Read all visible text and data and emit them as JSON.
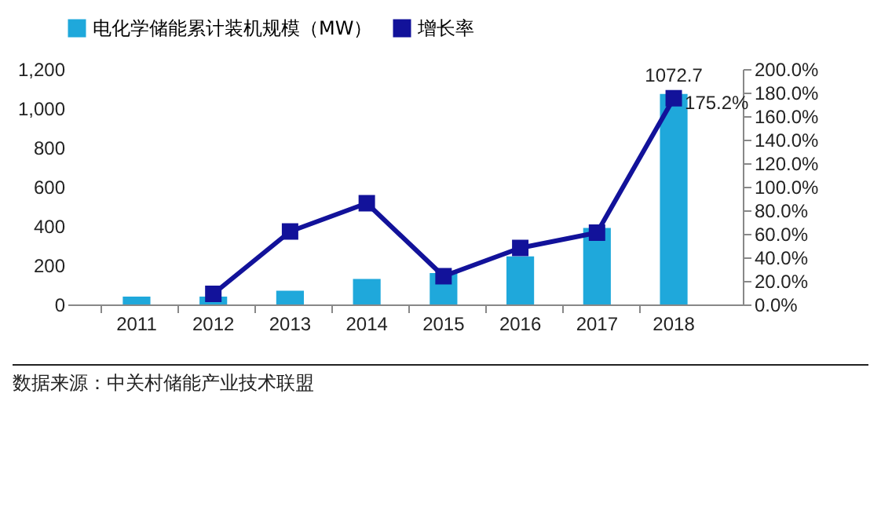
{
  "chart_data": {
    "type": "bar",
    "categories": [
      "2011",
      "2012",
      "2013",
      "2014",
      "2015",
      "2016",
      "2017",
      "2018"
    ],
    "series": [
      {
        "name": "电化学储能累计装机规模（MW）",
        "color": "#1fa8db",
        "values": [
          40,
          40,
          70,
          130,
          160,
          245,
          390,
          1072.7
        ],
        "value_labels": [
          null,
          null,
          null,
          null,
          null,
          null,
          null,
          "1072.7"
        ]
      },
      {
        "name": "增长率",
        "type": "line",
        "axis": "y2",
        "color": "#12129a",
        "marker": "square",
        "values": [
          null,
          9,
          62,
          86,
          24,
          48,
          61,
          175.2
        ],
        "value_labels": [
          null,
          null,
          null,
          null,
          null,
          null,
          null,
          "175.2%"
        ]
      }
    ],
    "ylim": [
      0,
      1200
    ],
    "yticks": [
      {
        "value": 0,
        "label": "0"
      },
      {
        "value": 200,
        "label": "200"
      },
      {
        "value": 400,
        "label": "400"
      },
      {
        "value": 600,
        "label": "600"
      },
      {
        "value": 800,
        "label": "800"
      },
      {
        "value": 1000,
        "label": "1,000"
      },
      {
        "value": 1200,
        "label": "1,200"
      }
    ],
    "y2lim": [
      0,
      200
    ],
    "y2ticks": [
      {
        "value": 0,
        "label": "0.0%"
      },
      {
        "value": 20,
        "label": "20.0%"
      },
      {
        "value": 40,
        "label": "40.0%"
      },
      {
        "value": 60,
        "label": "60.0%"
      },
      {
        "value": 80,
        "label": "80.0%"
      },
      {
        "value": 100,
        "label": "100.0%"
      },
      {
        "value": 120,
        "label": "120.0%"
      },
      {
        "value": 140,
        "label": "140.0%"
      },
      {
        "value": 160,
        "label": "160.0%"
      },
      {
        "value": 180,
        "label": "180.0%"
      },
      {
        "value": 200,
        "label": "200.0%"
      }
    ],
    "legend": "top",
    "annotations": [
      "数据来源：中关村储能产业技术联盟"
    ]
  }
}
